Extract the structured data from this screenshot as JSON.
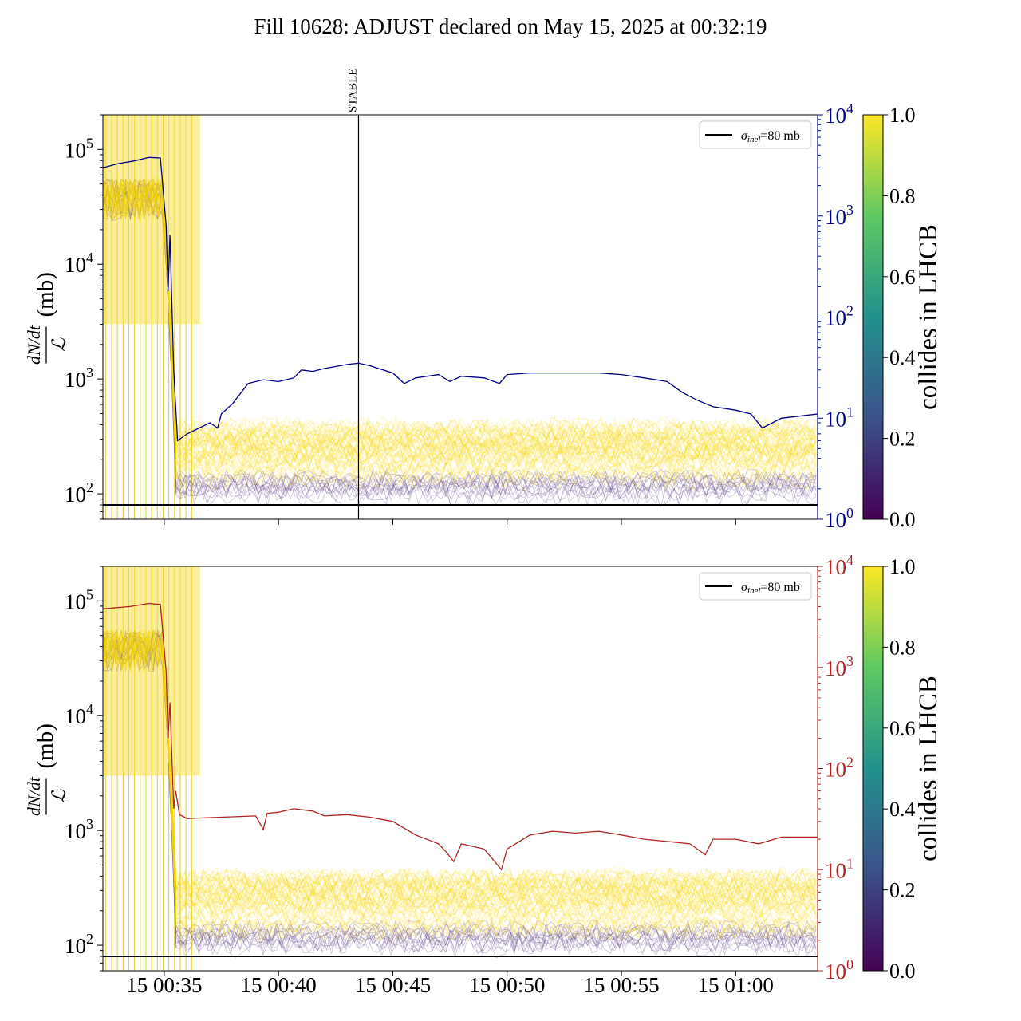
{
  "title": "Fill 10628: ADJUST declared on May 15, 2025 at 00:32:19",
  "colors": {
    "blue_line": "#00008b",
    "red_line": "#b22222",
    "yellow": "#fde725",
    "purple": "#440154",
    "reference": "#000000"
  },
  "chart_data": [
    {
      "type": "line",
      "panel": "top",
      "ylabel_left": "dN/dt / ℒ (mb)",
      "ylabel_numerator": "dN/dt",
      "ylabel_denominator": "ℒ",
      "ylabel_unit": "(mb)",
      "yscale_left": "log",
      "ylim_left": [
        60,
        200000
      ],
      "yticks_left": [
        {
          "base": "10",
          "exp": "2"
        },
        {
          "base": "10",
          "exp": "3"
        },
        {
          "base": "10",
          "exp": "4"
        },
        {
          "base": "10",
          "exp": "5"
        }
      ],
      "yscale_right": "log",
      "ylim_right": [
        1,
        10000
      ],
      "yticks_right": [
        {
          "base": "10",
          "exp": "0"
        },
        {
          "base": "10",
          "exp": "1"
        },
        {
          "base": "10",
          "exp": "2"
        },
        {
          "base": "10",
          "exp": "3"
        },
        {
          "base": "10",
          "exp": "4"
        }
      ],
      "right_axis_color": "#00008b",
      "xlim": [
        "00:32:19",
        "01:03:35"
      ],
      "xticks": [
        "15 00:35",
        "15 00:40",
        "15 00:45",
        "15 00:50",
        "15 00:55",
        "15 01:00"
      ],
      "xticklabels_shown": false,
      "reference_line": {
        "value": 80,
        "label_symbol": "σ",
        "label_sub": "inel",
        "label_rest": "=80 mb"
      },
      "vertical_marker": {
        "time": "00:43:30",
        "label": "STABLE"
      },
      "legend": "top-right",
      "colorbar": {
        "label": "collides in LHCB",
        "range": [
          0.0,
          1.0
        ],
        "ticks": [
          "0.0",
          "0.2",
          "0.4",
          "0.6",
          "0.8",
          "1.0"
        ],
        "colormap": "viridis"
      },
      "series": [
        {
          "axis": "right",
          "color": "#00008b",
          "points": [
            [
              "00:32:19",
              3000
            ],
            [
              "00:33:00",
              3300
            ],
            [
              "00:33:40",
              3500
            ],
            [
              "00:34:20",
              3800
            ],
            [
              "00:34:50",
              3750
            ],
            [
              "00:35:05",
              800
            ],
            [
              "00:35:10",
              180
            ],
            [
              "00:35:15",
              650
            ],
            [
              "00:35:25",
              30
            ],
            [
              "00:35:35",
              6
            ],
            [
              "00:36:00",
              7
            ],
            [
              "00:37:00",
              9
            ],
            [
              "00:37:20",
              8
            ],
            [
              "00:37:30",
              11
            ],
            [
              "00:38:00",
              14
            ],
            [
              "00:38:40",
              22
            ],
            [
              "00:39:20",
              24
            ],
            [
              "00:40:00",
              23
            ],
            [
              "00:40:40",
              25
            ],
            [
              "00:41:00",
              30
            ],
            [
              "00:41:30",
              29
            ],
            [
              "00:42:00",
              31
            ],
            [
              "00:43:00",
              34
            ],
            [
              "00:43:30",
              35
            ],
            [
              "00:44:00",
              33
            ],
            [
              "00:45:00",
              28
            ],
            [
              "00:45:30",
              22
            ],
            [
              "00:46:00",
              25
            ],
            [
              "00:47:00",
              27
            ],
            [
              "00:47:30",
              23
            ],
            [
              "00:48:00",
              26
            ],
            [
              "00:49:00",
              25
            ],
            [
              "00:49:40",
              22
            ],
            [
              "00:50:00",
              27
            ],
            [
              "00:51:00",
              28
            ],
            [
              "00:53:00",
              28
            ],
            [
              "00:54:00",
              28
            ],
            [
              "00:55:00",
              27
            ],
            [
              "00:56:00",
              25
            ],
            [
              "00:57:00",
              23
            ],
            [
              "00:57:40",
              18
            ],
            [
              "00:58:20",
              15
            ],
            [
              "00:59:00",
              13
            ],
            [
              "01:00:00",
              12
            ],
            [
              "01:00:40",
              11
            ],
            [
              "01:01:10",
              8
            ],
            [
              "01:02:00",
              10
            ],
            [
              "01:03:35",
              11
            ]
          ]
        }
      ]
    },
    {
      "type": "line",
      "panel": "bottom",
      "ylabel_left": "dN/dt / ℒ (mb)",
      "ylabel_numerator": "dN/dt",
      "ylabel_denominator": "ℒ",
      "ylabel_unit": "(mb)",
      "yscale_left": "log",
      "ylim_left": [
        60,
        200000
      ],
      "yticks_left": [
        {
          "base": "10",
          "exp": "2"
        },
        {
          "base": "10",
          "exp": "3"
        },
        {
          "base": "10",
          "exp": "4"
        },
        {
          "base": "10",
          "exp": "5"
        }
      ],
      "yscale_right": "log",
      "ylim_right": [
        1,
        10000
      ],
      "yticks_right": [
        {
          "base": "10",
          "exp": "0"
        },
        {
          "base": "10",
          "exp": "1"
        },
        {
          "base": "10",
          "exp": "2"
        },
        {
          "base": "10",
          "exp": "3"
        },
        {
          "base": "10",
          "exp": "4"
        }
      ],
      "right_axis_color": "#b22222",
      "xlim": [
        "00:32:19",
        "01:03:35"
      ],
      "xticks": [
        "15 00:35",
        "15 00:40",
        "15 00:45",
        "15 00:50",
        "15 00:55",
        "15 01:00"
      ],
      "xticklabels_shown": true,
      "reference_line": {
        "value": 80,
        "label_symbol": "σ",
        "label_sub": "inel",
        "label_rest": "=80 mb"
      },
      "legend": "top-right",
      "colorbar": {
        "label": "collides in LHCB",
        "range": [
          0.0,
          1.0
        ],
        "ticks": [
          "0.0",
          "0.2",
          "0.4",
          "0.6",
          "0.8",
          "1.0"
        ],
        "colormap": "viridis"
      },
      "series": [
        {
          "axis": "right",
          "color": "#b22222",
          "points": [
            [
              "00:32:19",
              3800
            ],
            [
              "00:33:30",
              4000
            ],
            [
              "00:34:20",
              4300
            ],
            [
              "00:34:50",
              4200
            ],
            [
              "00:35:05",
              900
            ],
            [
              "00:35:10",
              200
            ],
            [
              "00:35:15",
              450
            ],
            [
              "00:35:25",
              40
            ],
            [
              "00:35:30",
              60
            ],
            [
              "00:35:40",
              35
            ],
            [
              "00:36:00",
              32
            ],
            [
              "00:37:30",
              33
            ],
            [
              "00:39:00",
              34
            ],
            [
              "00:39:20",
              25
            ],
            [
              "00:39:30",
              36
            ],
            [
              "00:40:00",
              37
            ],
            [
              "00:40:40",
              40
            ],
            [
              "00:41:30",
              38
            ],
            [
              "00:42:00",
              34
            ],
            [
              "00:43:00",
              35
            ],
            [
              "00:44:00",
              33
            ],
            [
              "00:45:00",
              30
            ],
            [
              "00:46:00",
              22
            ],
            [
              "00:47:00",
              18
            ],
            [
              "00:47:20",
              15
            ],
            [
              "00:47:40",
              12
            ],
            [
              "00:48:00",
              18
            ],
            [
              "00:49:00",
              16
            ],
            [
              "00:49:45",
              10
            ],
            [
              "00:50:00",
              16
            ],
            [
              "00:51:00",
              22
            ],
            [
              "00:52:00",
              24
            ],
            [
              "00:53:00",
              23
            ],
            [
              "00:54:00",
              24
            ],
            [
              "00:55:00",
              22
            ],
            [
              "00:56:00",
              20
            ],
            [
              "00:57:00",
              19
            ],
            [
              "00:58:00",
              18
            ],
            [
              "00:58:40",
              14
            ],
            [
              "00:59:00",
              20
            ],
            [
              "01:00:00",
              20
            ],
            [
              "01:01:00",
              18
            ],
            [
              "01:02:00",
              21
            ],
            [
              "01:03:35",
              21
            ]
          ]
        }
      ]
    }
  ]
}
